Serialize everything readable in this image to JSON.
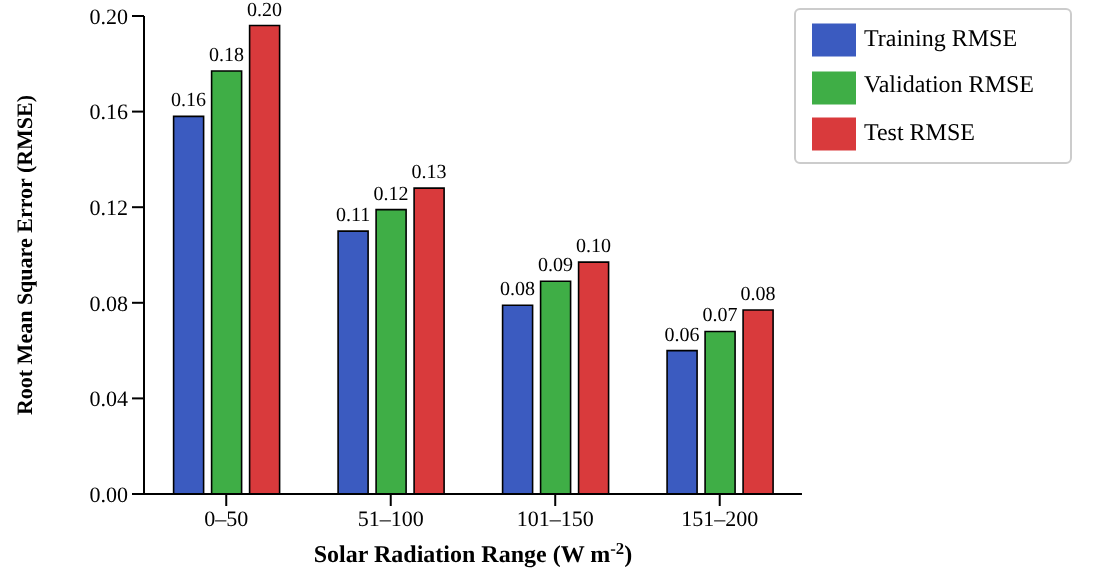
{
  "chart_data": {
    "type": "bar",
    "xlabel": "Solar Radiation Range (W m$^{-2}$)",
    "ylabel": "Root Mean Square Error (RMSE)",
    "categories": [
      "0–50",
      "51–100",
      "101–150",
      "151–200"
    ],
    "series": [
      {
        "name": "Training RMSE",
        "color": "#3b5bc0",
        "values": [
          0.158,
          0.11,
          0.079,
          0.06
        ],
        "value_labels": [
          "0.16",
          "0.11",
          "0.08",
          "0.06"
        ]
      },
      {
        "name": "Validation RMSE",
        "color": "#3fae46",
        "values": [
          0.177,
          0.119,
          0.089,
          0.068
        ],
        "value_labels": [
          "0.18",
          "0.12",
          "0.09",
          "0.07"
        ]
      },
      {
        "name": "Test RMSE",
        "color": "#d93a3c",
        "values": [
          0.196,
          0.128,
          0.097,
          0.077
        ],
        "value_labels": [
          "0.20",
          "0.13",
          "0.10",
          "0.08"
        ]
      }
    ],
    "ylim": [
      0,
      0.2
    ],
    "yticks": [
      {
        "value": 0,
        "label": "0.00"
      },
      {
        "value": 0.04,
        "label": "0.04"
      },
      {
        "value": 0.08,
        "label": "0.08"
      },
      {
        "value": 0.12,
        "label": "0.12"
      },
      {
        "value": 0.16,
        "label": "0.16"
      },
      {
        "value": 0.2,
        "label": "0.20"
      }
    ],
    "grid": false,
    "legend": "top right"
  }
}
